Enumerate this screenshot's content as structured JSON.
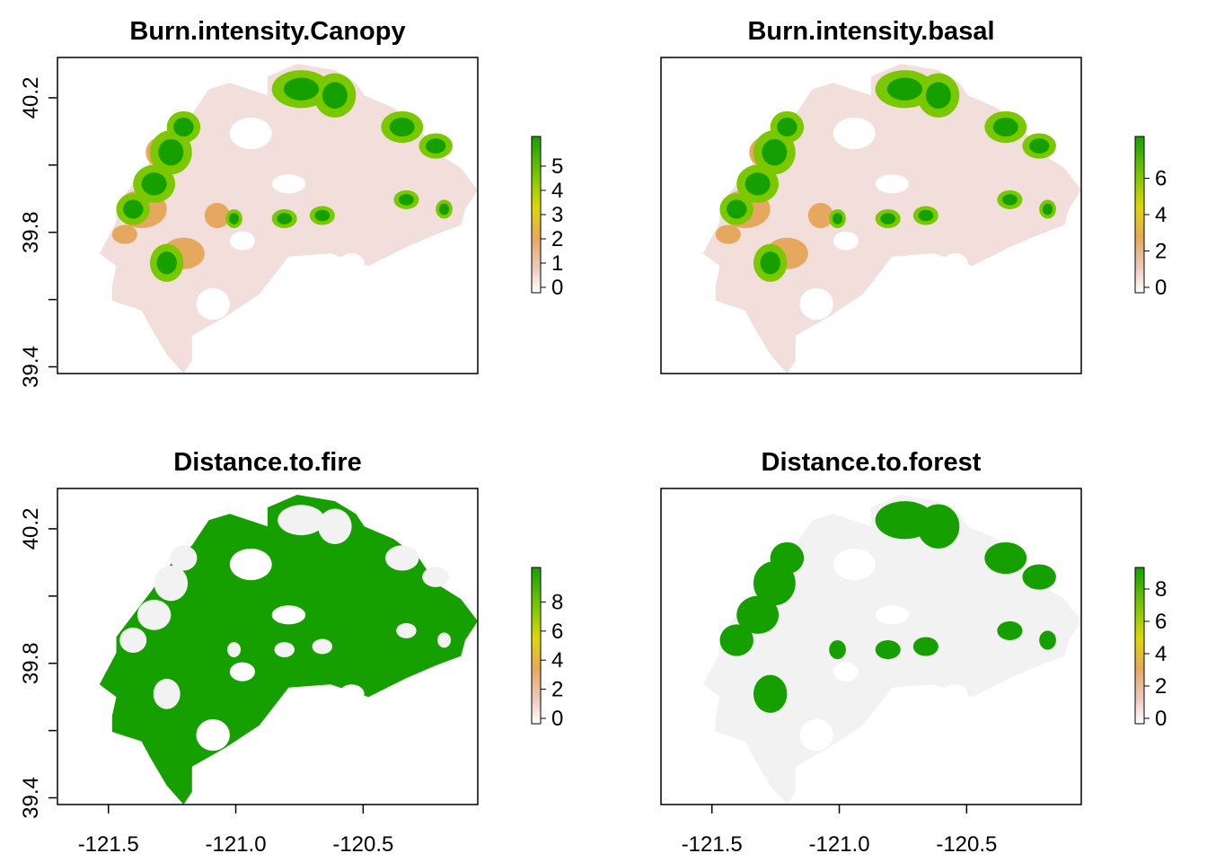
{
  "chart_data": [
    {
      "type": "heatmap",
      "title": "Burn.intensity.Canopy",
      "ylim": [
        39.38,
        40.32
      ],
      "yticks": [
        "39.4",
        "39.8",
        "40.2"
      ],
      "yticks_minor": [
        39.6,
        40.0
      ],
      "xlim": [
        -121.7,
        -120.05
      ],
      "xticks": [],
      "colorbar": {
        "min": 0,
        "max": 6,
        "ticks": [
          "0",
          "1",
          "2",
          "3",
          "4",
          "5"
        ]
      },
      "fire_strength": "burn"
    },
    {
      "type": "heatmap",
      "title": "Burn.intensity.basal",
      "ylim": [
        39.38,
        40.32
      ],
      "yticks": [],
      "xlim": [
        -121.7,
        -120.05
      ],
      "xticks": [],
      "colorbar": {
        "min": 0,
        "max": 8,
        "ticks": [
          "0",
          "2",
          "4",
          "6"
        ]
      },
      "fire_strength": "burn"
    },
    {
      "type": "heatmap",
      "title": "Distance.to.fire",
      "ylim": [
        39.38,
        40.32
      ],
      "yticks": [
        "39.4",
        "39.8",
        "40.2"
      ],
      "yticks_minor": [
        39.6,
        40.0
      ],
      "xlim": [
        -121.7,
        -120.05
      ],
      "xticks": [
        "-121.5",
        "-121.0",
        "-120.5"
      ],
      "colorbar": {
        "min": 0,
        "max": 10,
        "ticks": [
          "0",
          "2",
          "4",
          "6",
          "8"
        ]
      },
      "fire_strength": "dist"
    },
    {
      "type": "heatmap",
      "title": "Distance.to.forest",
      "ylim": [
        39.38,
        40.32
      ],
      "yticks": [],
      "xlim": [
        -121.7,
        -120.05
      ],
      "xticks": [
        "-121.5",
        "-121.0",
        "-120.5"
      ],
      "colorbar": {
        "min": 0,
        "max": 9,
        "ticks": [
          "0",
          "2",
          "4",
          "6",
          "8"
        ]
      },
      "fire_strength": "forest"
    }
  ],
  "colors": {
    "low": "#f2f2f2",
    "pink": "#eecbc2",
    "orange": "#e6a85e",
    "yellow": "#dcd800",
    "lightgreen": "#7bc800",
    "green": "#16a000"
  }
}
